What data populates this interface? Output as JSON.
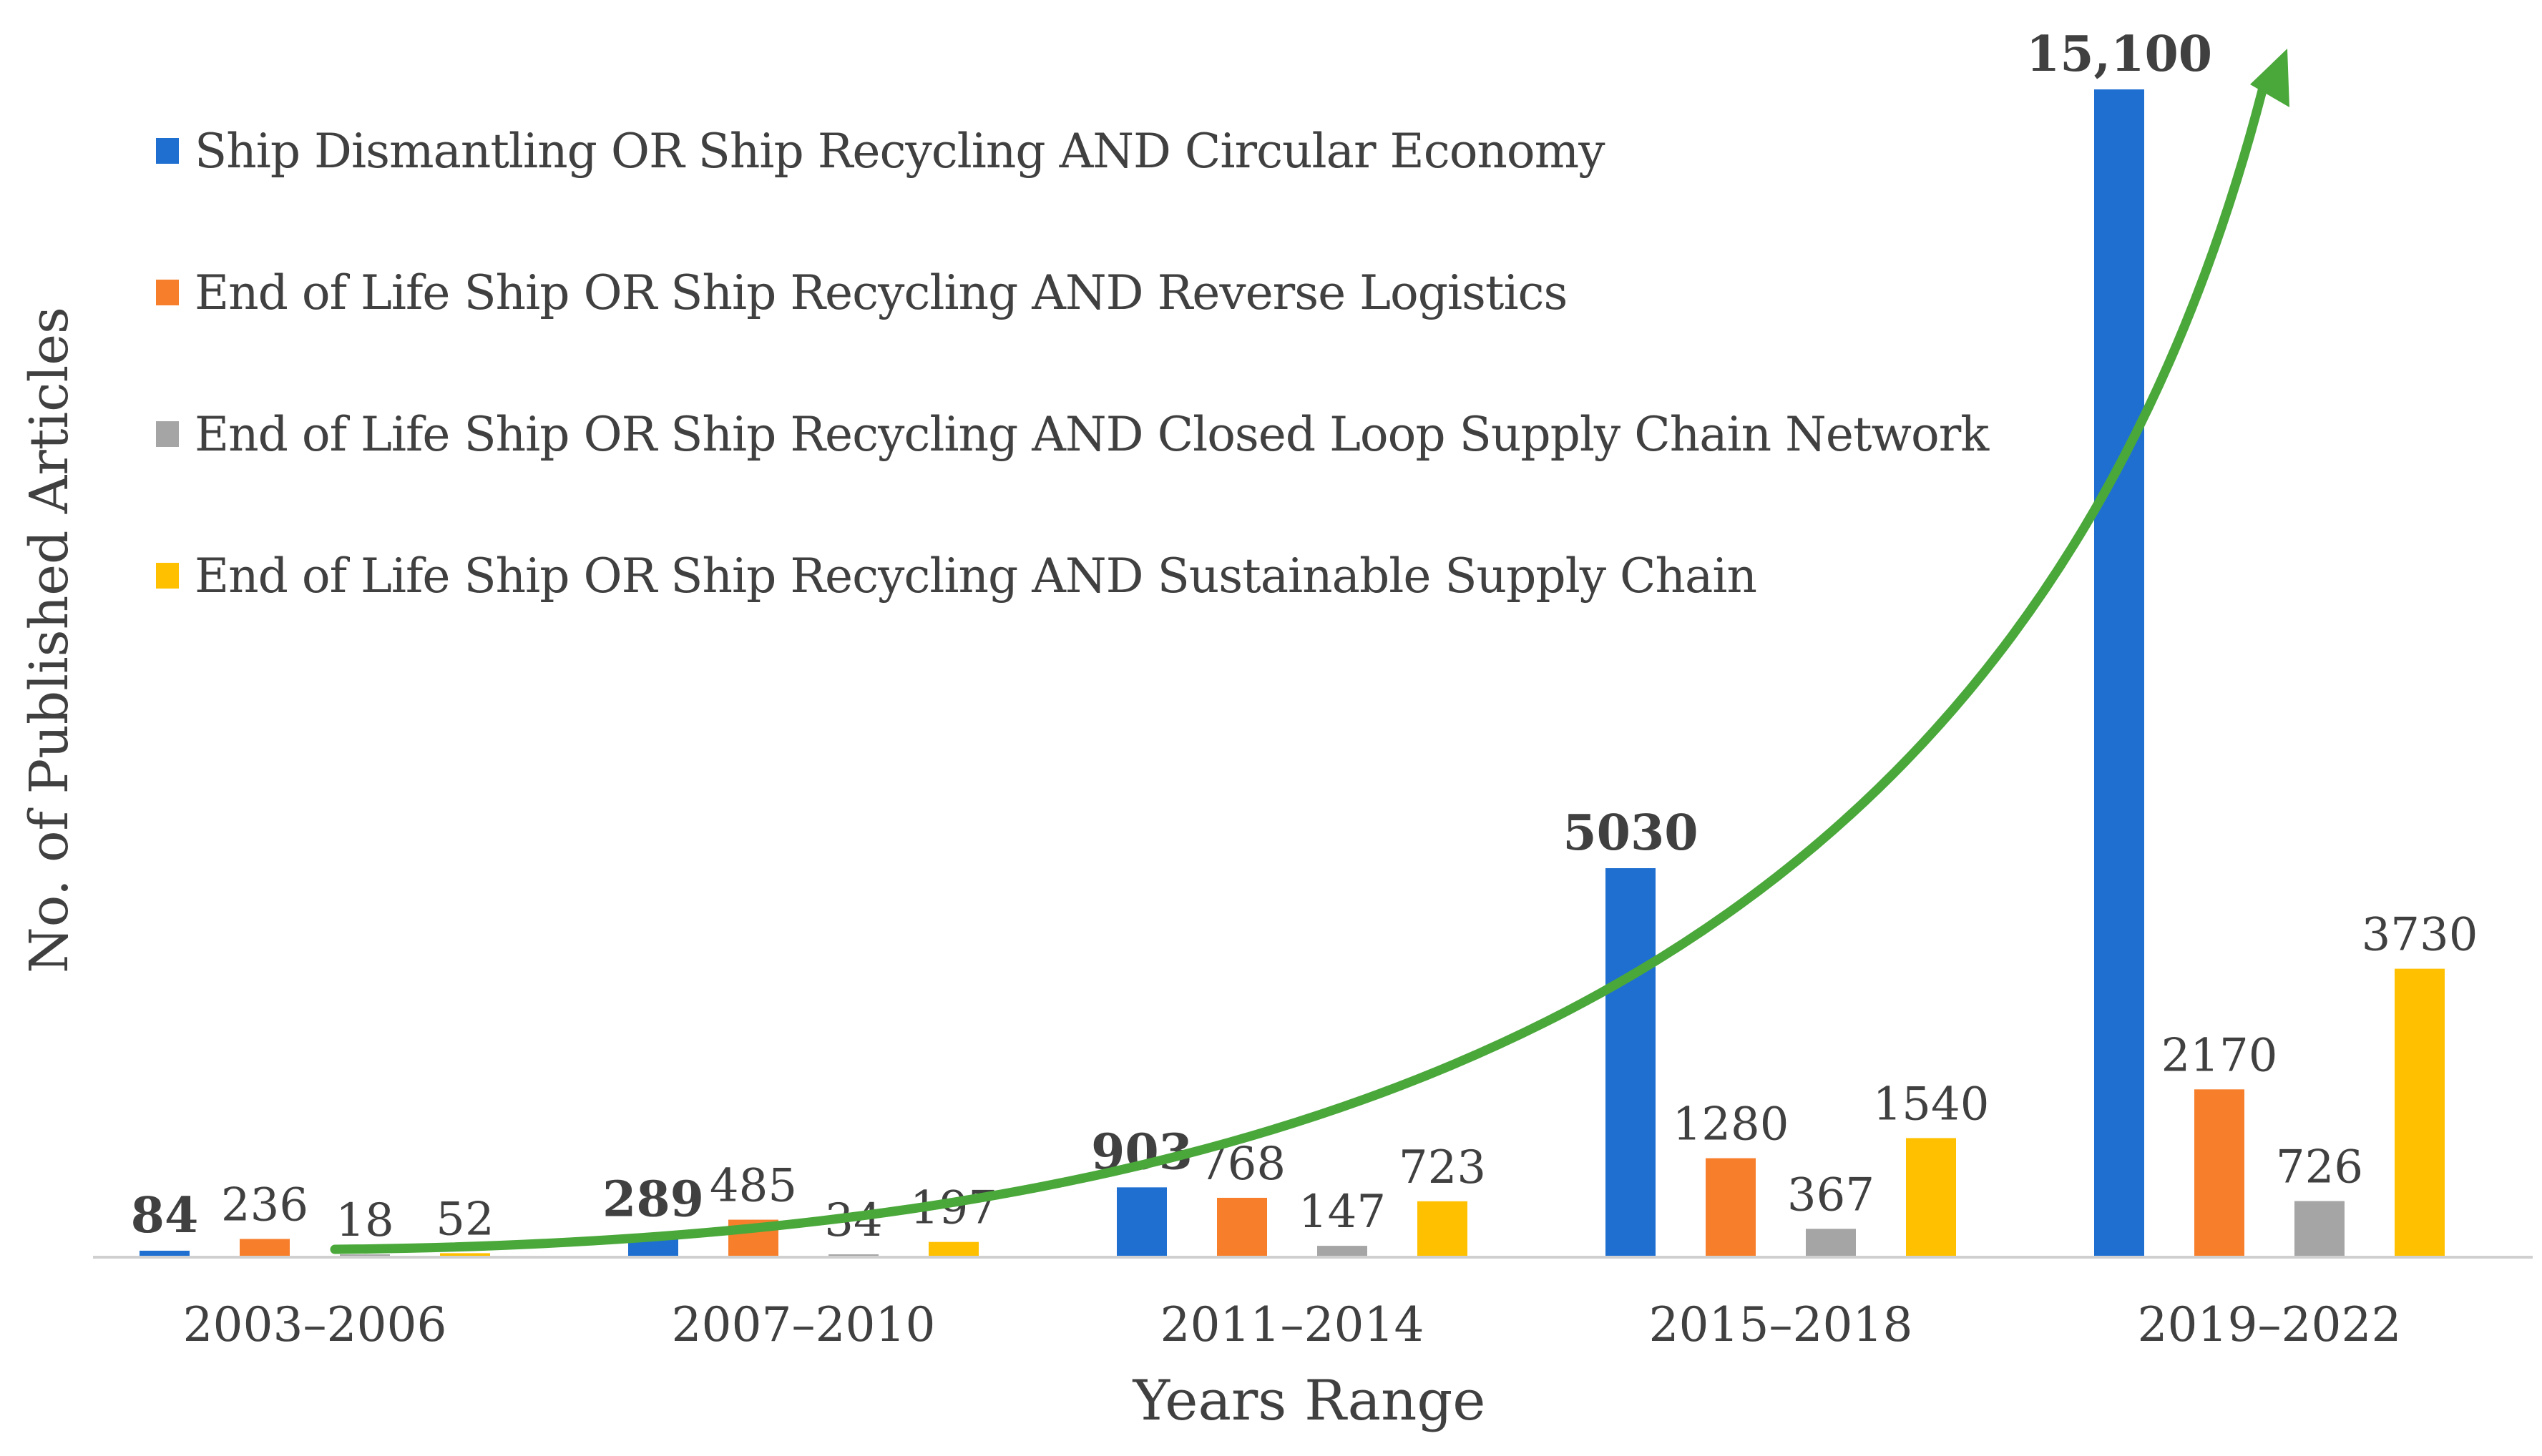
{
  "chart_data": {
    "type": "bar",
    "xlabel": "Years Range",
    "ylabel": "No. of Published Articles",
    "categories": [
      "2003–2006",
      "2007–2010",
      "2011–2014",
      "2015–2018",
      "2019–2022"
    ],
    "ylim": [
      0,
      16000
    ],
    "grid": false,
    "legend_position": "top-left",
    "series": [
      {
        "name": "Ship Dismantling OR Ship Recycling AND Circular Economy",
        "color": "#1f6fd1",
        "values": [
          84,
          289,
          903,
          5030,
          15100
        ],
        "labels": [
          "84",
          "289",
          "903",
          "5030",
          "15,100"
        ],
        "label_bold": true
      },
      {
        "name": "End of Life Ship OR Ship Recycling AND Reverse Logistics",
        "color": "#f77f2c",
        "values": [
          236,
          485,
          768,
          1280,
          2170
        ],
        "labels": [
          "236",
          "485",
          "768",
          "1280",
          "2170"
        ],
        "label_bold": false
      },
      {
        "name": "End of Life Ship OR Ship Recycling AND Closed Loop Supply Chain Network",
        "color": "#a5a5a5",
        "values": [
          18,
          34,
          147,
          367,
          726
        ],
        "labels": [
          "18",
          "34",
          "147",
          "367",
          "726"
        ],
        "label_bold": false
      },
      {
        "name": "End of Life Ship OR Ship Recycling AND Sustainable Supply Chain",
        "color": "#ffc000",
        "values": [
          52,
          197,
          723,
          1540,
          3730
        ],
        "labels": [
          "52",
          "197",
          "723",
          "1540",
          "3730"
        ],
        "label_bold": false
      }
    ],
    "annotations": [
      {
        "type": "trend-arrow",
        "color": "#4aa83a",
        "description": "exponential growth trend"
      }
    ]
  }
}
